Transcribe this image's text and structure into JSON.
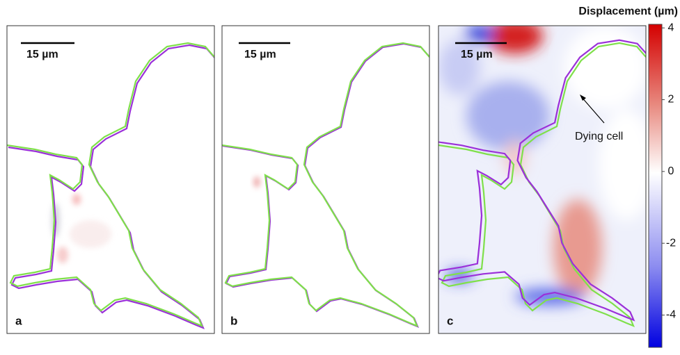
{
  "panels": [
    {
      "label": "a",
      "scale_bar": "15 µm"
    },
    {
      "label": "b",
      "scale_bar": "15 µm"
    },
    {
      "label": "c",
      "scale_bar": "15 µm",
      "annotation": "Dying cell"
    }
  ],
  "colorbar": {
    "title": "Displacement (µm)",
    "lim": [
      -4.9,
      4.1
    ],
    "ticks": [
      4,
      2,
      0,
      -2,
      -4
    ]
  }
}
